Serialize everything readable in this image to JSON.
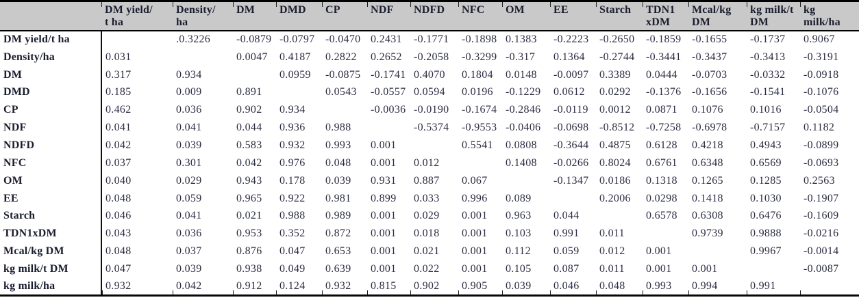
{
  "table": {
    "title": "correlation-and-p-value-matrix",
    "columns": [
      "",
      "DM yield/\nt ha",
      "Density/\nha",
      "DM",
      "DMD",
      "CP",
      "NDF",
      "NDFD",
      "NFC",
      "OM",
      "EE",
      "Starch",
      "TDN1\nxDM",
      "Mcal/kg\nDM",
      "kg milk/t\nDM",
      "kg\nmilk/ha"
    ],
    "rows": [
      {
        "label": "DM yield/t ha",
        "values": [
          "",
          ".0.3226",
          "-0.0879",
          "-0.0797",
          "-0.0470",
          "0.2431",
          "-0.1771",
          "-0.1898",
          "0.1383",
          "-0.2223",
          "-0.2650",
          "-0.1859",
          "-0.1655",
          "-0.1737",
          "0.9067"
        ]
      },
      {
        "label": "Density/ha",
        "values": [
          "0.031",
          "",
          "0.0047",
          "0.4187",
          "0.2822",
          "0.2652",
          "-0.2058",
          "-0.3299",
          "-0.317",
          "0.1364",
          "-0.2744",
          "-0.3441",
          "-0.3437",
          "-0.3413",
          "-0.3191"
        ]
      },
      {
        "label": "DM",
        "values": [
          "0.317",
          "0.934",
          "",
          "0.0959",
          "-0.0875",
          "-0.1741",
          "0.4070",
          "0.1804",
          "0.0148",
          "-0.0097",
          "0.3389",
          "0.0444",
          "-0.0703",
          "-0.0332",
          "-0.0918"
        ]
      },
      {
        "label": "DMD",
        "values": [
          "0.185",
          "0.009",
          "0.891",
          "",
          "0.0543",
          "-0.0557",
          "0.0594",
          "0.0196",
          "-0.1229",
          "0.0612",
          "0.0292",
          "-0.1376",
          "-0.1656",
          "-0.1541",
          "-0.1076"
        ]
      },
      {
        "label": "CP",
        "values": [
          "0.462",
          "0.036",
          "0.902",
          "0.934",
          "",
          "-0.0036",
          "-0.0190",
          "-0.1674",
          "-0.2846",
          "-0.0119",
          "0.0012",
          "0.0871",
          "0.1076",
          "0.1016",
          "-0.0504"
        ]
      },
      {
        "label": "NDF",
        "values": [
          "0.041",
          "0.041",
          "0.044",
          "0.936",
          "0.988",
          "",
          "-0.5374",
          "-0.9553",
          "-0.0406",
          "-0.0698",
          "-0.8512",
          "-0.7258",
          "-0.6978",
          "-0.7157",
          "0.1182"
        ]
      },
      {
        "label": "NDFD",
        "values": [
          "0.042",
          "0.039",
          "0.583",
          "0.932",
          "0.993",
          "0.001",
          "",
          "0.5541",
          "0.0808",
          "-0.3644",
          "0.4875",
          "0.6128",
          "0.4218",
          "0.4943",
          "-0.0899"
        ]
      },
      {
        "label": "NFC",
        "values": [
          "0.037",
          "0.301",
          "0.042",
          "0.976",
          "0.048",
          "0.001",
          "0.012",
          "",
          "0.1408",
          "-0.0266",
          "0.8024",
          "0.6761",
          "0.6348",
          "0.6569",
          "-0.0693"
        ]
      },
      {
        "label": "OM",
        "values": [
          "0.040",
          "0.029",
          "0.943",
          "0.178",
          "0.039",
          "0.931",
          "0.887",
          "0.067",
          "",
          "-0.1347",
          "0.0186",
          "0.1318",
          "0.1265",
          "0.1285",
          "0.2563"
        ]
      },
      {
        "label": "EE",
        "values": [
          "0.048",
          "0.059",
          "0.965",
          "0.922",
          "0.981",
          "0.899",
          "0.033",
          "0.996",
          "0.089",
          "",
          "0.2006",
          "0.0298",
          "0.1418",
          "0.1030",
          "-0.1907"
        ]
      },
      {
        "label": "Starch",
        "values": [
          "0.046",
          "0.041",
          "0.021",
          "0.988",
          "0.989",
          "0.001",
          "0.029",
          "0.001",
          "0.963",
          "0.044",
          "",
          "0.6578",
          "0.6308",
          "0.6476",
          "-0.1609"
        ]
      },
      {
        "label": "TDN1xDM",
        "values": [
          "0.043",
          "0.036",
          "0.953",
          "0.352",
          "0.872",
          "0.001",
          "0.018",
          "0.001",
          "0.103",
          "0.991",
          "0.011",
          "",
          "0.9739",
          "0.9888",
          "-0.0216"
        ]
      },
      {
        "label": "Mcal/kg DM",
        "values": [
          "0.048",
          "0.037",
          "0.876",
          "0.047",
          "0.653",
          "0.001",
          "0.021",
          "0.001",
          "0.112",
          "0.059",
          "0.012",
          "0.001",
          "",
          "0.9967",
          "-0.0014"
        ]
      },
      {
        "label": "kg milk/t DM",
        "values": [
          "0.047",
          "0.039",
          "0.938",
          "0.049",
          "0.639",
          "0.001",
          "0.022",
          "0.001",
          "0.105",
          "0.087",
          "0.011",
          "0.001",
          "0.001",
          "",
          "-0.0087"
        ]
      },
      {
        "label": "kg milk/ha",
        "values": [
          "0.932",
          "0.042",
          "0.912",
          "0.124",
          "0.932",
          "0.815",
          "0.902",
          "0.905",
          "0.039",
          "0.046",
          "0.048",
          "0.993",
          "0.994",
          "0.991",
          ""
        ]
      }
    ],
    "colors": {
      "header_bg": "#c9c9c9",
      "rule": "#000000",
      "text": "#2b2d42"
    }
  }
}
